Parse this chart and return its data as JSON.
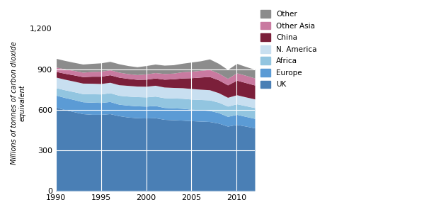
{
  "years": [
    1990,
    1991,
    1992,
    1993,
    1994,
    1995,
    1996,
    1997,
    1998,
    1999,
    2000,
    2001,
    2002,
    2003,
    2004,
    2005,
    2006,
    2007,
    2008,
    2009,
    2010,
    2011,
    2012
  ],
  "series": {
    "UK": [
      620,
      600,
      585,
      570,
      565,
      565,
      570,
      555,
      545,
      540,
      538,
      540,
      528,
      525,
      522,
      518,
      515,
      512,
      500,
      478,
      490,
      478,
      465
    ],
    "Europe": [
      88,
      90,
      90,
      88,
      90,
      88,
      90,
      85,
      88,
      88,
      88,
      90,
      88,
      88,
      88,
      85,
      83,
      82,
      78,
      72,
      75,
      72,
      70
    ],
    "Africa": [
      55,
      57,
      58,
      60,
      62,
      63,
      65,
      66,
      67,
      68,
      68,
      70,
      72,
      73,
      74,
      75,
      77,
      78,
      77,
      76,
      78,
      79,
      80
    ],
    "N. America": [
      78,
      78,
      78,
      78,
      78,
      77,
      77,
      78,
      79,
      78,
      79,
      80,
      79,
      78,
      78,
      78,
      76,
      75,
      70,
      65,
      67,
      65,
      64
    ],
    "China": [
      42,
      44,
      46,
      48,
      52,
      54,
      56,
      56,
      52,
      50,
      52,
      54,
      58,
      64,
      72,
      80,
      90,
      98,
      95,
      92,
      108,
      106,
      103
    ],
    "Other Asia": [
      32,
      33,
      33,
      33,
      35,
      37,
      37,
      37,
      35,
      35,
      39,
      40,
      42,
      42,
      46,
      48,
      50,
      52,
      50,
      48,
      54,
      54,
      52
    ],
    "Other": [
      65,
      62,
      60,
      60,
      60,
      62,
      62,
      62,
      60,
      58,
      62,
      63,
      62,
      62,
      63,
      68,
      70,
      78,
      72,
      66,
      70,
      65,
      64
    ]
  },
  "colors": {
    "UK": "#4a7fb5",
    "Europe": "#5b9bd5",
    "Africa": "#92c5e0",
    "N. America": "#c8dff0",
    "China": "#7b1f3a",
    "Other Asia": "#c97aa0",
    "Other": "#8c8c8c"
  },
  "ylabel": "Millions of tonnes of carbon dioxide\nequivalent",
  "ylim": [
    0,
    1300
  ],
  "yticks": [
    0,
    300,
    600,
    900,
    1200
  ],
  "xticks": [
    1990,
    1995,
    2000,
    2005,
    2010
  ],
  "legend_order": [
    "Other",
    "Other Asia",
    "China",
    "N. America",
    "Africa",
    "Europe",
    "UK"
  ],
  "bg_color": "#ffffff"
}
